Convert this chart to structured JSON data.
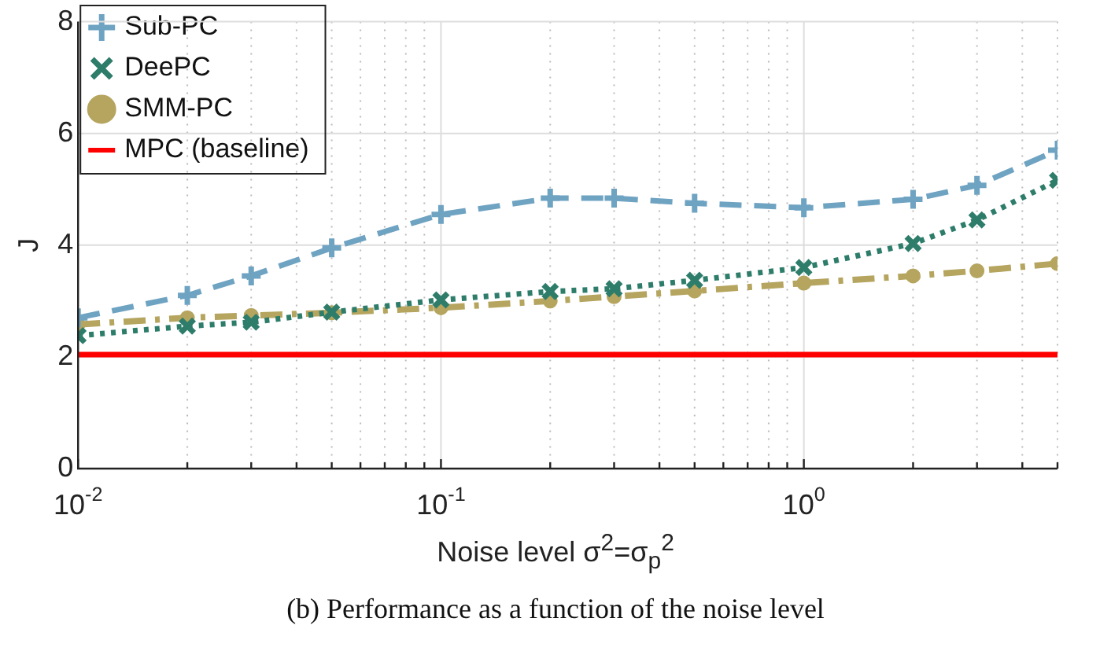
{
  "chart_data": {
    "type": "line",
    "xlabel": "Noise level σ$^{2}$=σ$_{p}$$^{2}$",
    "ylabel": "J",
    "x": [
      0.01,
      0.02,
      0.03,
      0.05,
      0.1,
      0.2,
      0.3,
      0.5,
      1,
      2,
      3,
      5
    ],
    "series": [
      {
        "name": "Sub-PC",
        "color": "#6fa3c2",
        "marker": "plus",
        "line_style": "dashed",
        "values": [
          2.7,
          3.1,
          3.45,
          3.95,
          4.55,
          4.84,
          4.84,
          4.75,
          4.67,
          4.82,
          5.07,
          5.7
        ]
      },
      {
        "name": "DeePC",
        "color": "#2e7d6b",
        "marker": "cross",
        "line_style": "dotted",
        "values": [
          2.38,
          2.55,
          2.62,
          2.8,
          3.02,
          3.17,
          3.22,
          3.37,
          3.6,
          4.03,
          4.45,
          5.16
        ]
      },
      {
        "name": "SMM-PC",
        "color": "#b5a55f",
        "marker": "circle",
        "line_style": "dashdot",
        "values": [
          2.58,
          2.7,
          2.74,
          2.79,
          2.88,
          3.0,
          3.08,
          3.18,
          3.32,
          3.45,
          3.54,
          3.67
        ]
      },
      {
        "name": "MPC (baseline)",
        "color": "#ff0000",
        "marker": "none",
        "line_style": "solid",
        "x": [
          0.01,
          5
        ],
        "values": [
          2.04,
          2.04
        ]
      }
    ],
    "log": "x",
    "xlim": [
      0.01,
      5
    ],
    "ylim": [
      0,
      8
    ],
    "yticks": [
      0,
      2,
      4,
      6,
      8
    ],
    "xticks": [
      {
        "value": 0.01,
        "label": "10$^{-2}$"
      },
      {
        "value": 0.02,
        "label": null
      },
      {
        "value": 0.03,
        "label": null
      },
      {
        "value": 0.04,
        "label": null
      },
      {
        "value": 0.05,
        "label": null
      },
      {
        "value": 0.06,
        "label": null
      },
      {
        "value": 0.07,
        "label": null
      },
      {
        "value": 0.08,
        "label": null
      },
      {
        "value": 0.09,
        "label": null
      },
      {
        "value": 0.1,
        "label": "10$^{-1}$"
      },
      {
        "value": 0.2,
        "label": null
      },
      {
        "value": 0.3,
        "label": null
      },
      {
        "value": 0.4,
        "label": null
      },
      {
        "value": 0.5,
        "label": null
      },
      {
        "value": 0.6,
        "label": null
      },
      {
        "value": 0.7,
        "label": null
      },
      {
        "value": 0.8,
        "label": null
      },
      {
        "value": 0.9,
        "label": null
      },
      {
        "value": 1,
        "label": "10$^{0}$"
      },
      {
        "value": 2,
        "label": null
      },
      {
        "value": 3,
        "label": null
      },
      {
        "value": 4,
        "label": null
      },
      {
        "value": 5,
        "label": null
      }
    ],
    "grid": true,
    "legend": "top left",
    "annotations": [
      "(b) Performance as a function of the noise level"
    ]
  }
}
